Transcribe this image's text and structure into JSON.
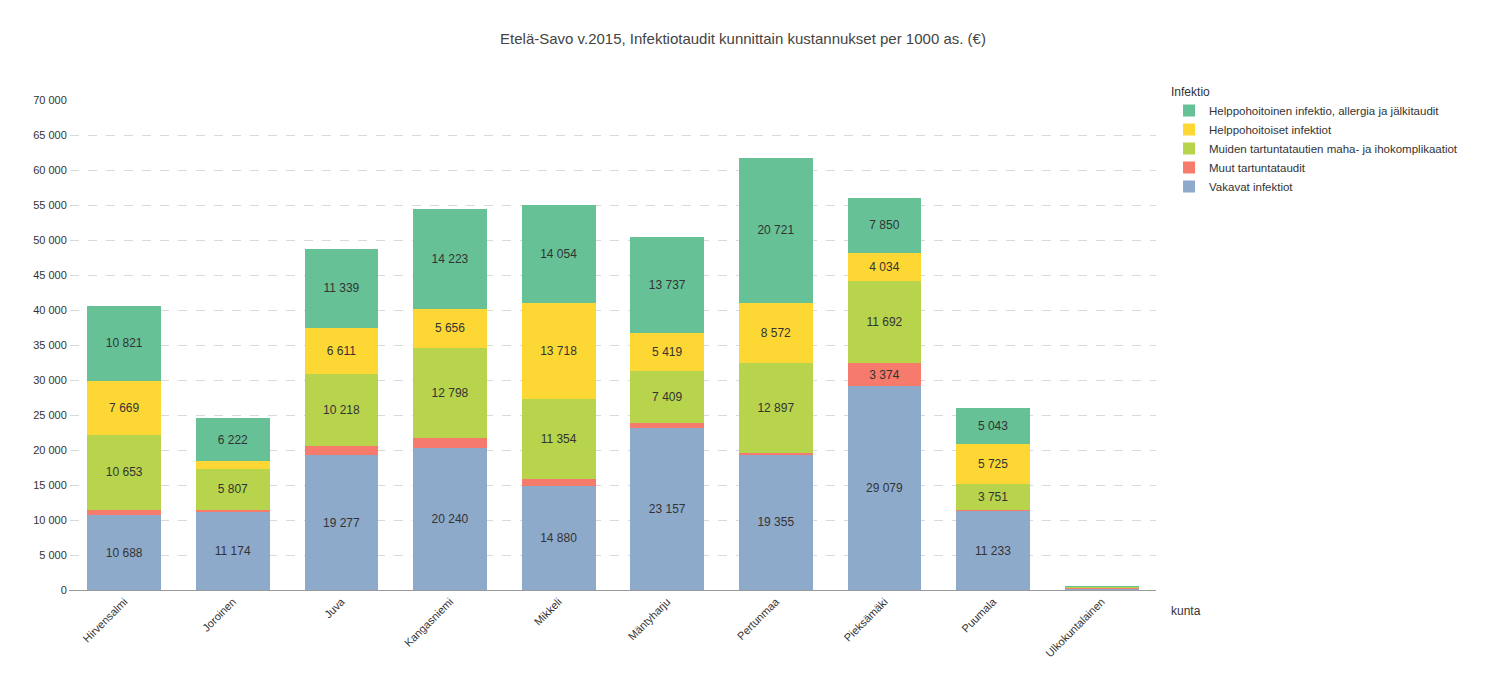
{
  "chart_data": {
    "type": "bar",
    "title": "Etelä-Savo v.2015, Infektiotaudit kunnittain kustannukset per 1000 as. (€)",
    "x_label": "kunta",
    "legend_title": "Infektio",
    "stacked": true,
    "data_labels": true,
    "grid": true,
    "legend": "right",
    "categories": [
      "Hirvensalmi",
      "Joroinen",
      "Juva",
      "Kangasniemi",
      "Mikkeli",
      "Mäntyharju",
      "Pertunmaa",
      "Pieksämäki",
      "Puumala",
      "Ulkokuntalainen"
    ],
    "ylim": [
      0,
      70000
    ],
    "yticks": [
      0,
      {
        "value": 5000,
        "label": "5 000"
      },
      {
        "value": 10000,
        "label": "10 000"
      },
      {
        "value": 15000,
        "label": "15 000"
      },
      {
        "value": 20000,
        "label": "20 000"
      },
      {
        "value": 25000,
        "label": "25 000"
      },
      {
        "value": 30000,
        "label": "30 000"
      },
      {
        "value": 35000,
        "label": "35 000"
      },
      {
        "value": 40000,
        "label": "40 000"
      },
      {
        "value": 45000,
        "label": "45 000"
      },
      {
        "value": 50000,
        "label": "50 000"
      },
      {
        "value": 55000,
        "label": "55 000"
      },
      {
        "value": 60000,
        "label": "60 000"
      },
      {
        "value": 65000,
        "label": "65 000"
      },
      {
        "value": 70000,
        "label": "70 000"
      }
    ],
    "series": [
      {
        "name": "Vakavat infektiot",
        "color": "#8eaacb",
        "values": [
          10688,
          11174,
          19277,
          20240,
          14880,
          23157,
          19355,
          29079,
          11233,
          200
        ],
        "value_labels": [
          "10 688",
          "11 174",
          "19 277",
          "20 240",
          "14 880",
          "23 157",
          "19 355",
          "29 079",
          "11 233",
          null
        ]
      },
      {
        "name": "Muut tartuntataudit",
        "color": "#f77b6c",
        "values": [
          800,
          300,
          1300,
          1500,
          1000,
          700,
          200,
          3374,
          200,
          20
        ],
        "value_labels": [
          null,
          null,
          null,
          null,
          null,
          null,
          null,
          "3 374",
          null,
          null
        ]
      },
      {
        "name": "Muiden tartuntatautien maha- ja ihokomplikaatiot",
        "color": "#b8d44d",
        "values": [
          10653,
          5807,
          10218,
          12798,
          11354,
          7409,
          12897,
          11692,
          3751,
          150
        ],
        "value_labels": [
          "10 653",
          "5 807",
          "10 218",
          "12 798",
          "11 354",
          "7 409",
          "12 897",
          "11 692",
          "3 751",
          null
        ]
      },
      {
        "name": "Helppohoitoiset infektiot",
        "color": "#fdd835",
        "values": [
          7669,
          1100,
          6611,
          5656,
          13718,
          5419,
          8572,
          4034,
          5725,
          30
        ],
        "value_labels": [
          "7 669",
          null,
          "6 611",
          "5 656",
          "13 718",
          "5 419",
          "8 572",
          "4 034",
          "5 725",
          null
        ]
      },
      {
        "name": "Helppohoitoinen infektio, allergia ja jälkitaudit",
        "color": "#66c296",
        "values": [
          10821,
          6222,
          11339,
          14223,
          14054,
          13737,
          20721,
          7850,
          5043,
          200
        ],
        "value_labels": [
          "10 821",
          "6 222",
          "11 339",
          "14 223",
          "14 054",
          "13 737",
          "20 721",
          "7 850",
          "5 043",
          null
        ]
      }
    ]
  }
}
